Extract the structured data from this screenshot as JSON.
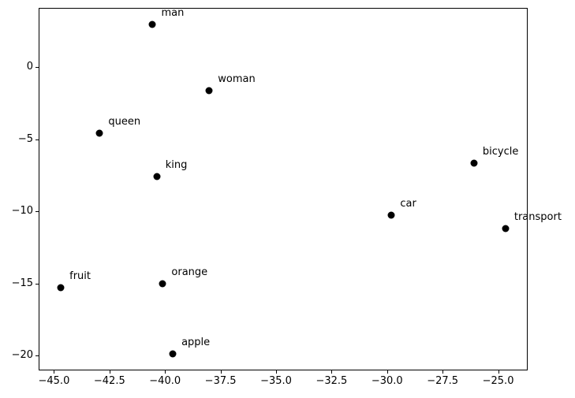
{
  "chart_data": {
    "type": "scatter",
    "title": "",
    "xlabel": "",
    "ylabel": "",
    "grid": false,
    "legend_position": "none",
    "background_color": "#ffffff",
    "marker_color": "#000000",
    "marker_shape": "circle",
    "xlim": [
      -45.69,
      -23.67
    ],
    "ylim": [
      -21.03,
      4.1
    ],
    "x_ticks": {
      "values": [
        -45.0,
        -42.5,
        -40.0,
        -37.5,
        -35.0,
        -32.5,
        -30.0,
        -27.5,
        -25.0
      ],
      "labels": [
        "−45.0",
        "−42.5",
        "−40.0",
        "−37.5",
        "−35.0",
        "−32.5",
        "−30.0",
        "−27.5",
        "−25.0"
      ]
    },
    "y_ticks": {
      "values": [
        0,
        -5,
        -10,
        -15,
        -20
      ],
      "labels": [
        "0",
        "−5",
        "−10",
        "−15",
        "−20"
      ]
    },
    "points": [
      {
        "label": "man",
        "x": -40.56,
        "y": 2.96
      },
      {
        "label": "woman",
        "x": -38.01,
        "y": -1.63
      },
      {
        "label": "queen",
        "x": -42.94,
        "y": -4.56
      },
      {
        "label": "king",
        "x": -40.37,
        "y": -7.58
      },
      {
        "label": "bicycle",
        "x": -26.09,
        "y": -6.65
      },
      {
        "label": "car",
        "x": -29.8,
        "y": -10.25
      },
      {
        "label": "transport",
        "x": -24.67,
        "y": -11.17
      },
      {
        "label": "fruit",
        "x": -44.69,
        "y": -15.28
      },
      {
        "label": "orange",
        "x": -40.1,
        "y": -15.02
      },
      {
        "label": "apple",
        "x": -39.65,
        "y": -19.89
      }
    ]
  }
}
